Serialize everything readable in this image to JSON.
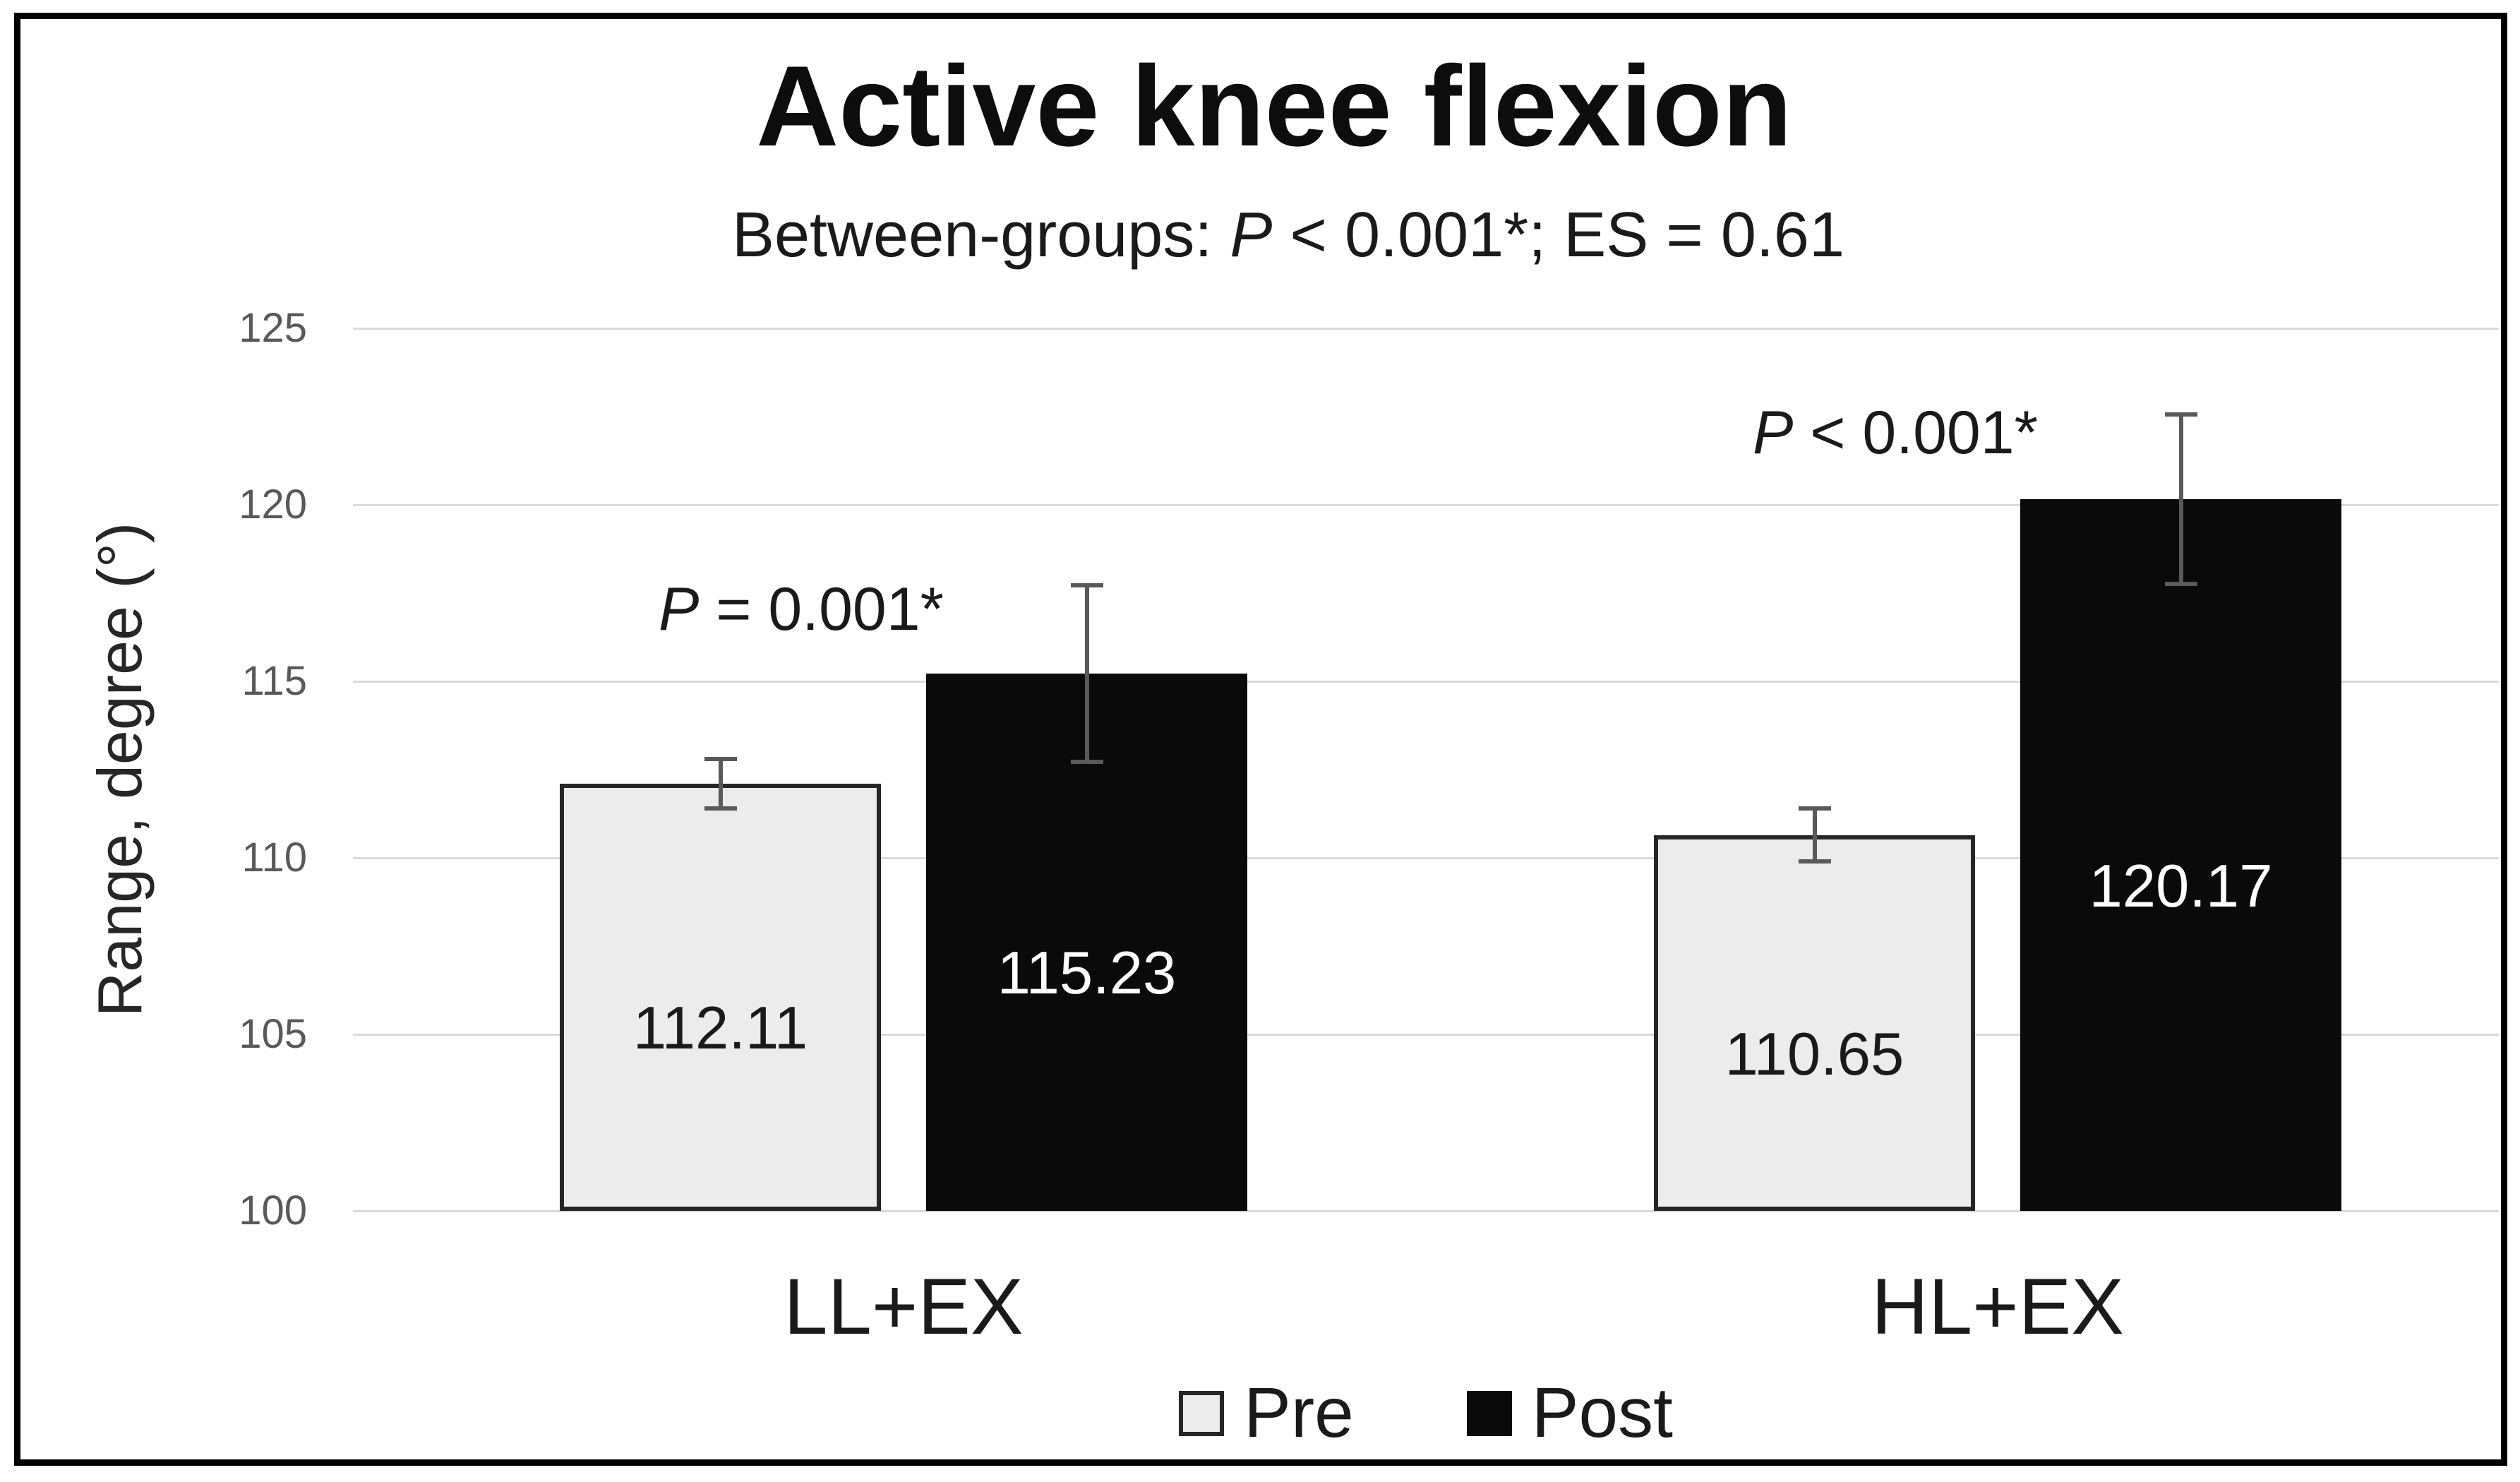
{
  "figure": {
    "border_color": "#000000",
    "background": "#ffffff"
  },
  "chart_data": {
    "type": "bar",
    "title": "Active knee flexion",
    "subtitle": "Between-groups: P < 0.001*; ES = 0.61",
    "ylabel": "Range, degree (°)",
    "xlabel": "",
    "ylim": [
      100,
      125
    ],
    "yticks": [
      100,
      105,
      110,
      115,
      120,
      125
    ],
    "grid": true,
    "legend_position": "bottom",
    "categories": [
      "LL+EX",
      "HL+EX"
    ],
    "series": [
      {
        "name": "Pre",
        "values": [
          112.11,
          110.65
        ],
        "errors": [
          0.7,
          0.75
        ],
        "fill": "#ececec",
        "border": "#262626",
        "label_color": "#1a1a1a"
      },
      {
        "name": "Post",
        "values": [
          115.23,
          120.17
        ],
        "errors": [
          2.5,
          2.4
        ],
        "fill": "#0a0a0a",
        "border": "#0a0a0a",
        "label_color": "#ffffff"
      }
    ],
    "annotations": [
      {
        "text": "P = 0.001*",
        "category_index": 0,
        "y_value": 117.1
      },
      {
        "text": "P < 0.001*",
        "category_index": 1,
        "y_value": 122.1
      }
    ],
    "colors": {
      "gridline": "#d9d9d9",
      "tick_label": "#595959",
      "error_bar": "#595959",
      "text": "#1a1a1a"
    }
  }
}
